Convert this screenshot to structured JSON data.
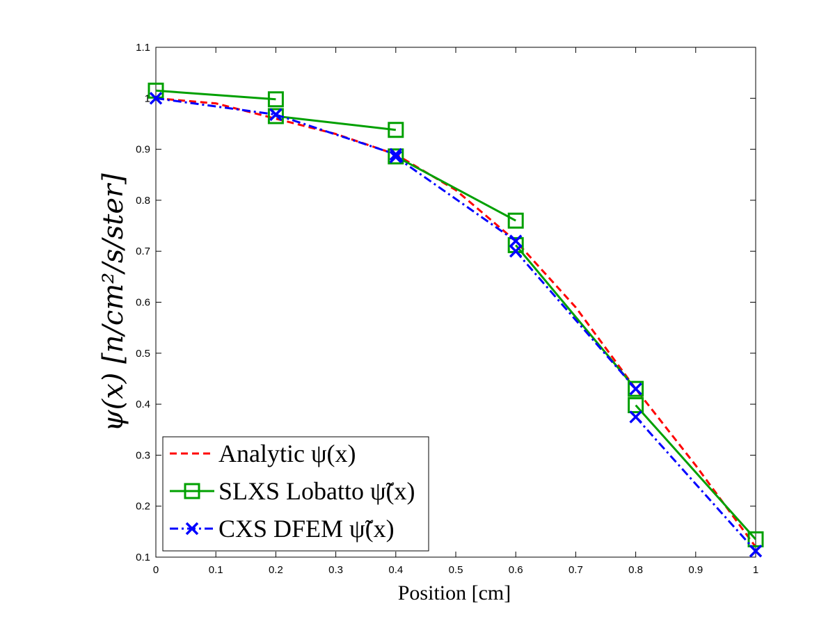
{
  "chart_data": {
    "type": "line",
    "title": "",
    "xlabel": "Position [cm]",
    "ylabel": "ψ(x)  [n/cm²/s/ster]",
    "xlim": [
      0,
      1
    ],
    "ylim": [
      0.1,
      1.1
    ],
    "xticks": [
      "0",
      "0.1",
      "0.2",
      "0.3",
      "0.4",
      "0.5",
      "0.6",
      "0.7",
      "0.8",
      "0.9",
      "1"
    ],
    "yticks": [
      "0.1",
      "0.2",
      "0.3",
      "0.4",
      "0.5",
      "0.6",
      "0.7",
      "0.8",
      "0.9",
      "1",
      "1.1"
    ],
    "grid": false,
    "legend_position": "bottom-left",
    "series": [
      {
        "name": "Analytic ψ(x)",
        "color": "#ff0000",
        "line_style": "dashed",
        "marker": "none",
        "x": [
          0,
          0.1,
          0.2,
          0.3,
          0.4,
          0.5,
          0.6,
          0.7,
          0.8,
          0.9,
          1.0
        ],
        "y": [
          1.0,
          0.99,
          0.96,
          0.93,
          0.89,
          0.82,
          0.72,
          0.59,
          0.43,
          0.28,
          0.12
        ]
      },
      {
        "name": "SLXS Lobatto ψ̃(x)",
        "color": "#00a000",
        "line_style": "solid",
        "marker": "square",
        "segments": [
          {
            "x": [
              0.0,
              0.2
            ],
            "y": [
              1.015,
              0.998
            ]
          },
          {
            "x": [
              0.2,
              0.4
            ],
            "y": [
              0.965,
              0.938
            ]
          },
          {
            "x": [
              0.4,
              0.6
            ],
            "y": [
              0.886,
              0.76
            ]
          },
          {
            "x": [
              0.6,
              0.8
            ],
            "y": [
              0.712,
              0.43
            ]
          },
          {
            "x": [
              0.8,
              1.0
            ],
            "y": [
              0.398,
              0.135
            ]
          }
        ]
      },
      {
        "name": "CXS DFEM ψ̃(x)",
        "color": "#0000ff",
        "line_style": "dash-dot",
        "marker": "x",
        "segments": [
          {
            "x": [
              0.0,
              0.2
            ],
            "y": [
              1.0,
              0.968
            ]
          },
          {
            "x": [
              0.2,
              0.4
            ],
            "y": [
              0.968,
              0.89
            ]
          },
          {
            "x": [
              0.4,
              0.6
            ],
            "y": [
              0.885,
              0.72
            ]
          },
          {
            "x": [
              0.6,
              0.8
            ],
            "y": [
              0.7,
              0.43
            ]
          },
          {
            "x": [
              0.8,
              1.0
            ],
            "y": [
              0.375,
              0.112
            ]
          }
        ]
      }
    ]
  }
}
